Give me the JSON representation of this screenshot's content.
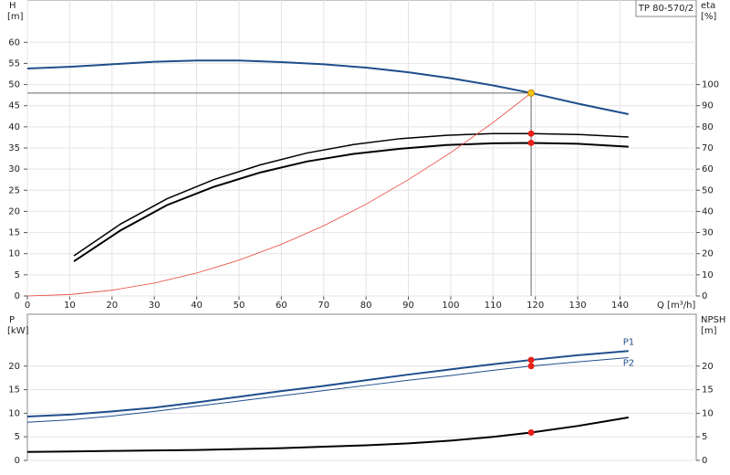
{
  "chart_data": [
    {
      "type": "line",
      "title": "TP 80-570/2",
      "y_label": "H",
      "y_unit": "[m]",
      "y2_label": "eta",
      "y2_unit": "[%]",
      "x_label": "Q [m³/h]",
      "xlim": [
        0,
        158
      ],
      "xticks": [
        0,
        10,
        20,
        30,
        40,
        50,
        60,
        70,
        80,
        90,
        100,
        110,
        120,
        130,
        140
      ],
      "ylim": [
        0,
        70
      ],
      "yticks": [
        0,
        5,
        10,
        15,
        20,
        25,
        30,
        35,
        40,
        45,
        50,
        55,
        60
      ],
      "y2lim": [
        0,
        140
      ],
      "y2ticks": [
        0,
        10,
        20,
        30,
        40,
        50,
        60,
        70,
        80,
        90,
        100
      ],
      "grid": true,
      "series": [
        {
          "color": "#1f4e8c",
          "width": 2,
          "x": [
            0,
            10,
            20,
            30,
            40,
            50,
            60,
            70,
            80,
            90,
            100,
            110,
            119,
            130,
            142
          ],
          "values": [
            53.8,
            54.2,
            54.8,
            55.4,
            55.7,
            55.7,
            55.3,
            54.8,
            54,
            52.9,
            51.5,
            49.8,
            48,
            45.5,
            43
          ]
        },
        {
          "color": "#000000",
          "width": 1.5,
          "axis": "y2",
          "x": [
            11,
            22,
            33,
            44,
            55,
            66,
            77,
            88,
            99,
            110,
            119,
            130,
            142
          ],
          "values": [
            19,
            34,
            46,
            55,
            62,
            67.6,
            71.6,
            74.4,
            76,
            76.8,
            76.8,
            76.4,
            75.2
          ]
        },
        {
          "color": "#000000",
          "width": 2,
          "axis": "y2",
          "x": [
            11,
            22,
            33,
            44,
            55,
            66,
            77,
            88,
            99,
            110,
            119,
            130,
            142
          ],
          "values": [
            16.4,
            31,
            43,
            51.6,
            58.4,
            63.6,
            67.2,
            69.6,
            71.4,
            72.2,
            72.4,
            72,
            70.6
          ]
        },
        {
          "color": "#e8443a",
          "width": 0.8,
          "x": [
            0,
            10,
            20,
            30,
            40,
            50,
            60,
            70,
            80,
            90,
            100,
            110,
            119
          ],
          "values": [
            0,
            0.34,
            1.36,
            3.05,
            5.42,
            8.47,
            12.2,
            16.6,
            21.7,
            27.5,
            33.9,
            41,
            48
          ]
        }
      ],
      "points": [
        {
          "x": 119,
          "y": 48,
          "color": "#f5c518",
          "guides": true
        },
        {
          "x": 119,
          "y": 76.8,
          "axis": "y2",
          "color": "#e8201a"
        },
        {
          "x": 119,
          "y": 72.4,
          "axis": "y2",
          "color": "#e8201a"
        }
      ]
    },
    {
      "type": "line",
      "y_label": "P",
      "y_unit": "[kW]",
      "y2_label": "NPSH",
      "y2_unit": "[m]",
      "xlim": [
        0,
        158
      ],
      "ylim": [
        0,
        31
      ],
      "yticks": [
        0,
        5,
        10,
        15,
        20
      ],
      "y2lim": [
        0,
        31
      ],
      "y2ticks": [
        0,
        5,
        10,
        15,
        20
      ],
      "grid": true,
      "series": [
        {
          "name": "P1",
          "color": "#1f4e8c",
          "width": 2,
          "x": [
            0,
            10,
            20,
            30,
            40,
            50,
            60,
            70,
            80,
            90,
            100,
            110,
            119,
            130,
            142
          ],
          "values": [
            9.3,
            9.7,
            10.4,
            11.2,
            12.3,
            13.5,
            14.7,
            15.8,
            17,
            18.2,
            19.3,
            20.4,
            21.3,
            22.3,
            23.2
          ]
        },
        {
          "name": "P2",
          "color": "#1f4e8c",
          "width": 1,
          "x": [
            0,
            10,
            20,
            30,
            40,
            50,
            60,
            70,
            80,
            90,
            100,
            110,
            119,
            130,
            142
          ],
          "values": [
            8.1,
            8.6,
            9.4,
            10.4,
            11.5,
            12.6,
            13.7,
            14.8,
            15.9,
            17,
            18,
            19.1,
            20,
            20.9,
            21.8
          ]
        },
        {
          "color": "#000000",
          "width": 2,
          "axis": "y2",
          "x": [
            0,
            10,
            20,
            30,
            40,
            50,
            60,
            70,
            80,
            90,
            100,
            110,
            119,
            130,
            142
          ],
          "values": [
            1.8,
            1.9,
            2,
            2.1,
            2.2,
            2.4,
            2.6,
            2.9,
            3.2,
            3.6,
            4.2,
            5,
            5.9,
            7.3,
            9.1
          ]
        }
      ],
      "points": [
        {
          "x": 119,
          "y": 21.3,
          "color": "#e8201a"
        },
        {
          "x": 119,
          "y": 20,
          "color": "#e8201a"
        },
        {
          "x": 119,
          "y": 5.9,
          "axis": "y2",
          "color": "#e8201a"
        }
      ]
    }
  ]
}
